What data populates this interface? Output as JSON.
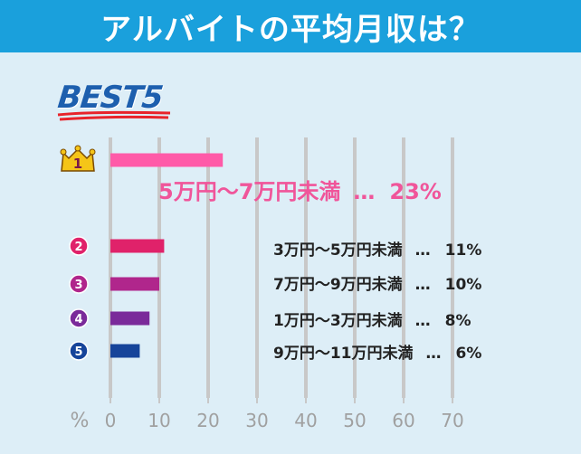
{
  "title": "アルバイトの平均月収は？",
  "badge": "BEST5",
  "colors": {
    "title_bg": "#1aa0dc",
    "background": "#ddeef7",
    "axis": "#c8c8c8",
    "crown": "#f5c518",
    "ranks": [
      "#ff5aa8",
      "#e0226a",
      "#b0268c",
      "#7a2a9a",
      "#16449a"
    ]
  },
  "chart_data": {
    "type": "bar",
    "orientation": "horizontal",
    "categories": [
      "5万円〜7万円未満",
      "3万円〜5万円未満",
      "7万円〜9万円未満",
      "1万円〜3万円未満",
      "9万円〜11万円未満"
    ],
    "values": [
      23,
      11,
      10,
      8,
      6
    ],
    "value_labels": [
      "23%",
      "11%",
      "10%",
      "8%",
      "6%"
    ],
    "ranks": [
      "1",
      "2",
      "3",
      "4",
      "5"
    ],
    "separator": "…",
    "x_unit": "%",
    "xlim": [
      0,
      70
    ],
    "x_ticks": [
      0,
      10,
      20,
      30,
      40,
      50,
      60,
      70
    ],
    "grid": true
  }
}
